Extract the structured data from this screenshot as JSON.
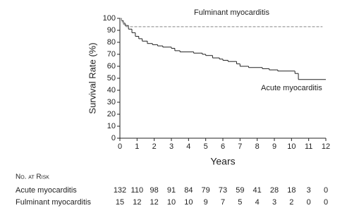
{
  "chart_data": {
    "type": "step",
    "x_label": "Years",
    "y_label": "Survival Rate (%)",
    "xlim": [
      0,
      12
    ],
    "xticks": [
      0,
      1,
      2,
      3,
      4,
      5,
      6,
      7,
      8,
      9,
      10,
      11,
      12
    ],
    "ylim": [
      0,
      100
    ],
    "yticks": [
      0,
      10,
      20,
      30,
      40,
      50,
      60,
      70,
      80,
      90,
      100
    ],
    "series": [
      {
        "name": "Acute myocarditis",
        "color": "#222222",
        "dashed": false,
        "x": [
          0,
          0.1,
          0.2,
          0.3,
          0.5,
          0.7,
          0.9,
          1.1,
          1.3,
          1.6,
          1.9,
          2.2,
          2.5,
          3.0,
          3.2,
          3.5,
          4.3,
          4.8,
          5.0,
          5.4,
          5.8,
          6.0,
          6.3,
          6.8,
          7.0,
          7.5,
          8.3,
          8.7,
          9.2,
          10.2,
          10.4,
          12
        ],
        "values": [
          100,
          98,
          96,
          94,
          91,
          88,
          85,
          83,
          81,
          79,
          78,
          77,
          76,
          75,
          73,
          72,
          71,
          70,
          69,
          67,
          66,
          65,
          64,
          62,
          60,
          59,
          58,
          57,
          56,
          54,
          49,
          49
        ]
      },
      {
        "name": "Fulminant myocarditis",
        "color": "#888888",
        "dashed": true,
        "x": [
          0,
          0.1,
          0.2,
          0.35,
          11.8
        ],
        "values": [
          100,
          97,
          95,
          93,
          93
        ]
      }
    ],
    "risk_table": {
      "title": "No. at Risk",
      "rows": [
        {
          "name": "Acute myocarditis",
          "values": [
            132,
            110,
            98,
            91,
            84,
            79,
            73,
            59,
            41,
            28,
            18,
            3,
            0
          ]
        },
        {
          "name": "Fulminant myocarditis",
          "values": [
            15,
            12,
            12,
            10,
            10,
            9,
            7,
            5,
            4,
            3,
            2,
            0,
            0
          ]
        }
      ]
    }
  }
}
